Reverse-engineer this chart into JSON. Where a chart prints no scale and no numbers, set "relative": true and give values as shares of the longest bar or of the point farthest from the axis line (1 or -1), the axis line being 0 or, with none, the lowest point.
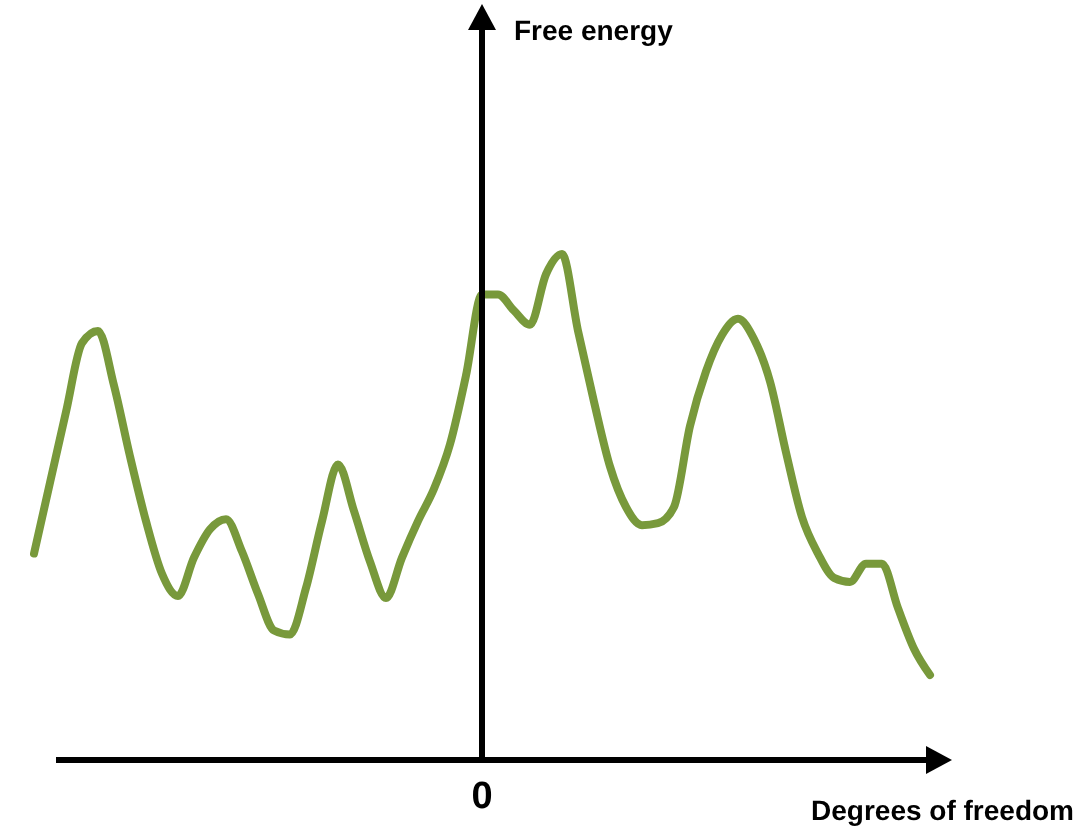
{
  "chart_data": {
    "type": "line",
    "relative": true,
    "xlabel": "Degrees of freedom",
    "annotations": [
      "Free energy",
      "0"
    ],
    "categories": [
      null,
      null,
      null,
      null,
      null,
      null,
      null,
      null,
      null,
      null,
      null,
      null,
      null,
      null,
      null,
      null,
      null,
      null,
      null,
      null,
      null,
      null,
      null,
      null,
      null,
      null,
      null,
      null,
      null,
      null,
      null,
      null,
      null,
      null,
      null,
      null,
      null,
      null,
      null,
      null,
      null,
      null,
      null,
      null,
      null,
      null,
      null,
      null,
      null,
      null,
      null,
      null,
      null,
      null,
      null,
      null,
      null
    ],
    "series": [
      {
        "color": "#78993b",
        "values": [
          0.408,
          0.548,
          0.688,
          0.824,
          0.848,
          0.74,
          0.6,
          0.472,
          0.368,
          0.324,
          0.4,
          0.456,
          0.476,
          0.412,
          0.328,
          0.256,
          0.248,
          0.34,
          0.472,
          0.584,
          0.492,
          0.392,
          0.32,
          0.4,
          0.472,
          0.536,
          0.624,
          0.76,
          0.92,
          0.92,
          0.888,
          0.86,
          0.96,
          1,
          0.848,
          0.708,
          0.58,
          0.5,
          0.464,
          0.468,
          0.5,
          0.66,
          0.768,
          0.84,
          0.872,
          0.832,
          0.748,
          0.608,
          0.48,
          0.408,
          0.36,
          0.352,
          0.388,
          0.388,
          0.3,
          0.22,
          0.168
        ]
      }
    ]
  }
}
